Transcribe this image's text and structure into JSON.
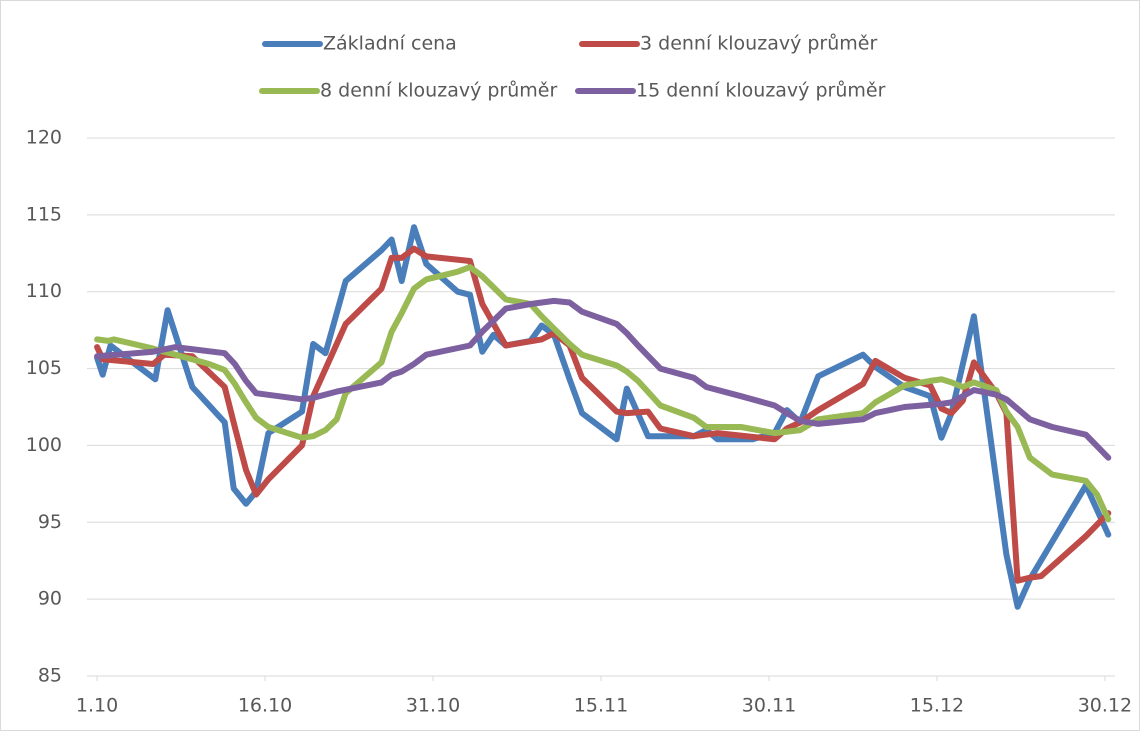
{
  "chart_data": {
    "type": "line",
    "ylim": [
      85,
      120
    ],
    "yticks": [
      85,
      90,
      95,
      100,
      105,
      110,
      115,
      120
    ],
    "grid": true,
    "xlim": [
      -0.9,
      90.9
    ],
    "xticks": [
      {
        "value": 0,
        "label": "1.10"
      },
      {
        "value": 15,
        "label": "16.10"
      },
      {
        "value": 30,
        "label": "31.10"
      },
      {
        "value": 45,
        "label": "15.11"
      },
      {
        "value": 60,
        "label": "30.11"
      },
      {
        "value": 75,
        "label": "15.12"
      },
      {
        "value": 90,
        "label": "30.12"
      }
    ],
    "legend": "top",
    "series": [
      {
        "name": "Základní cena",
        "color": "#4a7ebb",
        "x": [
          0,
          0.5,
          1.2,
          5.2,
          6.3,
          8.5,
          11.4,
          12.2,
          13.3,
          14.2,
          15.3,
          18.3,
          19.3,
          20.4,
          22.2,
          25.4,
          26.3,
          27.2,
          28.3,
          29.4,
          32.2,
          33.3,
          34.4,
          35.4,
          36.5,
          38.7,
          39.7,
          40.8,
          42.2,
          43.3,
          46.4,
          47.3,
          49.2,
          53.3,
          54.4,
          55.4,
          58.5,
          60.5,
          61.6,
          62.8,
          64.4,
          68.4,
          69.5,
          72.1,
          74.4,
          75.4,
          76.3,
          78.3,
          81.2,
          82.2,
          83.3,
          88.3,
          90.3
        ],
        "values": [
          105.7,
          104.6,
          106.5,
          104.3,
          108.8,
          103.8,
          101.5,
          97.2,
          96.2,
          97,
          100.8,
          102.2,
          106.6,
          106,
          110.7,
          112.7,
          113.4,
          110.7,
          114.2,
          111.8,
          110,
          109.8,
          106.1,
          107.2,
          106.5,
          106.8,
          107.8,
          107.2,
          104.3,
          102.1,
          100.4,
          103.7,
          100.6,
          100.6,
          101,
          100.4,
          100.4,
          100.8,
          102.3,
          101.5,
          104.5,
          105.9,
          105.1,
          103.8,
          103.2,
          100.5,
          102.1,
          108.4,
          92.9,
          89.5,
          91.3,
          97.4,
          94.2
        ]
      },
      {
        "name": "3 denní klouzavý průměr",
        "color": "#be4b48",
        "x": [
          0,
          0.5,
          5,
          6,
          8.5,
          11.4,
          12.3,
          13.3,
          14.2,
          15.3,
          18.3,
          19.3,
          22.2,
          25.4,
          26.3,
          27.2,
          28.3,
          29.4,
          33.3,
          34.4,
          36.5,
          39.7,
          40.8,
          42.2,
          43.3,
          46.4,
          47.3,
          49.2,
          50.3,
          53.3,
          55.4,
          60.5,
          61.6,
          62.8,
          64.4,
          68.4,
          69.5,
          72.1,
          74.4,
          75.4,
          76.3,
          77.3,
          78.3,
          80.3,
          81.2,
          82.2,
          83.3,
          84.3,
          88.3,
          90.3
        ],
        "values": [
          106.4,
          105.6,
          105.3,
          105.9,
          105.8,
          103.8,
          101.2,
          98.4,
          96.8,
          97.8,
          100,
          103.2,
          107.9,
          110.2,
          112.2,
          112.2,
          112.8,
          112.3,
          112,
          109.2,
          106.5,
          106.9,
          107.3,
          106.5,
          104.4,
          102.2,
          102.1,
          102.2,
          101.1,
          100.6,
          100.8,
          100.4,
          101.1,
          101.5,
          102.3,
          104,
          105.5,
          104.4,
          103.9,
          102.4,
          102.1,
          102.9,
          105.4,
          103.4,
          102.1,
          91.2,
          91.4,
          91.5,
          94.1,
          95.6
        ]
      },
      {
        "name": "8 denní klouzavý průměr",
        "color": "#98b954",
        "x": [
          0,
          1,
          1.5,
          5,
          6,
          10,
          11.4,
          12.3,
          13.3,
          14.2,
          15.3,
          18.3,
          19.3,
          20.4,
          21.4,
          22.2,
          25.4,
          26.3,
          27.2,
          28.3,
          29.4,
          32.2,
          33.3,
          34.4,
          36.5,
          38.7,
          39.7,
          40.8,
          42.2,
          43.3,
          46.4,
          47.3,
          48.3,
          50.3,
          53.3,
          54.4,
          57.5,
          60.5,
          62.8,
          64.4,
          68.4,
          69.5,
          72.1,
          74.4,
          75.4,
          76.3,
          77.3,
          78.3,
          80.3,
          81.2,
          82.2,
          83.3,
          85.3,
          88.3,
          89.3,
          90.3
        ],
        "values": [
          106.9,
          106.8,
          106.9,
          106.3,
          106.1,
          105.3,
          104.9,
          104,
          102.8,
          101.8,
          101.2,
          100.5,
          100.6,
          101,
          101.7,
          103.4,
          105.4,
          107.4,
          108.6,
          110.2,
          110.8,
          111.3,
          111.6,
          111,
          109.5,
          109.2,
          108.4,
          107.6,
          106.6,
          105.9,
          105.2,
          104.8,
          104.2,
          102.6,
          101.8,
          101.2,
          101.2,
          100.8,
          101,
          101.7,
          102.1,
          102.8,
          103.9,
          104.2,
          104.3,
          104.1,
          103.8,
          104.1,
          103.6,
          102.2,
          101.2,
          99.2,
          98.1,
          97.7,
          96.8,
          95.2
        ]
      },
      {
        "name": "15 denní klouzavý průměr",
        "color": "#7d60a0",
        "x": [
          0,
          5,
          7,
          11.4,
          12.3,
          13.3,
          14.2,
          18.3,
          19.3,
          21.4,
          25.4,
          26.3,
          27.2,
          28.3,
          29.4,
          33.3,
          34.4,
          36.5,
          38.7,
          40.8,
          42.2,
          43.3,
          46.4,
          47.3,
          48.3,
          50.3,
          53.3,
          54.4,
          57.5,
          60.5,
          61.6,
          62.8,
          64.4,
          68.4,
          69.5,
          72.1,
          75.4,
          76.3,
          78.3,
          80.3,
          81.2,
          83.3,
          85.3,
          88.3,
          90.3
        ],
        "values": [
          105.8,
          106.1,
          106.4,
          106,
          105.3,
          104.2,
          103.4,
          103,
          103.1,
          103.5,
          104.1,
          104.6,
          104.8,
          105.3,
          105.9,
          106.5,
          107.4,
          108.9,
          109.2,
          109.4,
          109.3,
          108.7,
          107.9,
          107.3,
          106.5,
          105,
          104.4,
          103.8,
          103.2,
          102.6,
          102.1,
          101.6,
          101.4,
          101.7,
          102.1,
          102.5,
          102.7,
          102.8,
          103.6,
          103.3,
          103,
          101.7,
          101.2,
          100.7,
          99.2
        ]
      }
    ]
  }
}
